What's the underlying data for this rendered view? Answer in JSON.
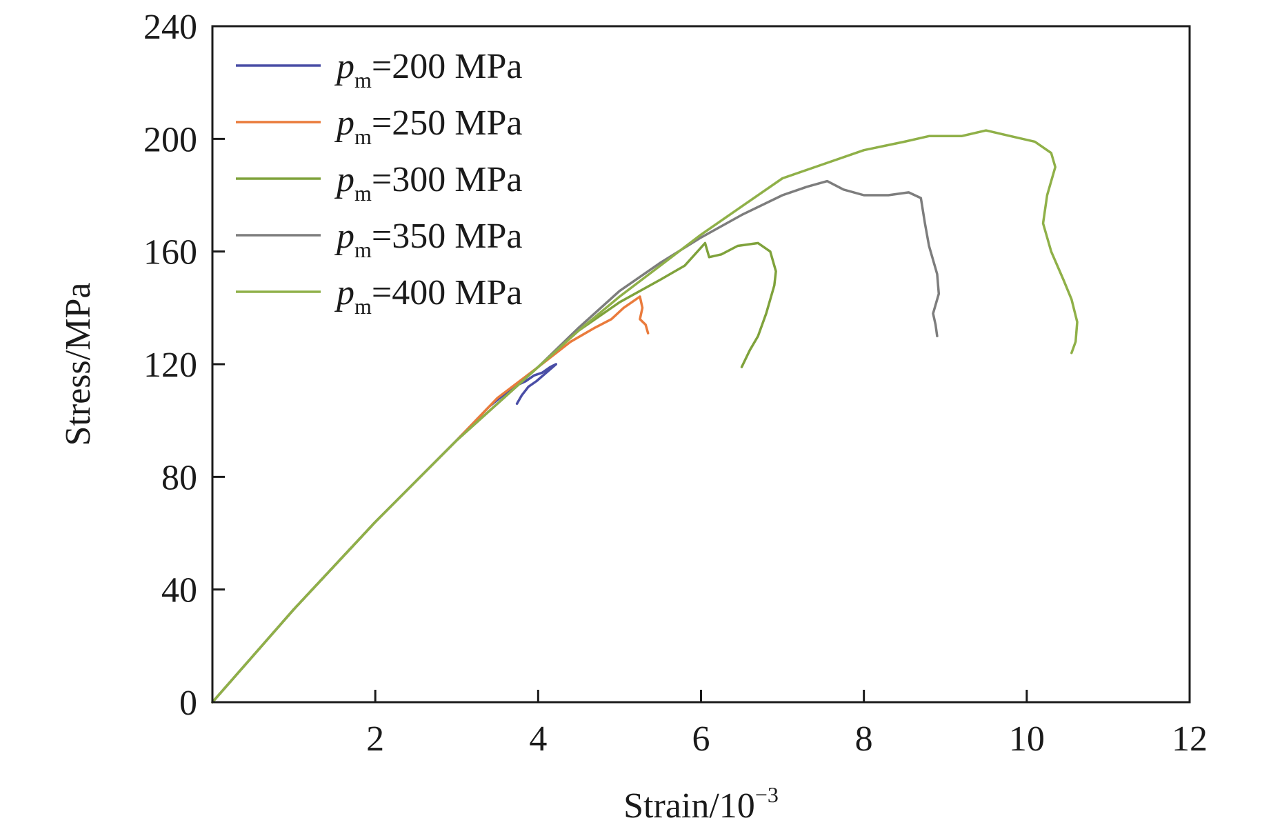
{
  "chart_data": {
    "type": "line",
    "title": "",
    "xlabel": "Strain/10",
    "xlabel_sup": "−3",
    "ylabel": "Stress/MPa",
    "xlim": [
      0,
      12
    ],
    "ylim": [
      0,
      240
    ],
    "xticks": [
      2,
      4,
      6,
      8,
      10,
      12
    ],
    "yticks": [
      0,
      40,
      80,
      120,
      160,
      200,
      240
    ],
    "grid": false,
    "legend_position": "top-left",
    "series": [
      {
        "name": "pm=200 MPa",
        "label_parts": {
          "p": "p",
          "sub": "m",
          "rest": "=200 MPa"
        },
        "color": "#4a4ea6",
        "points": [
          [
            0,
            0
          ],
          [
            1,
            33
          ],
          [
            2,
            64
          ],
          [
            3,
            93
          ],
          [
            3.4,
            105
          ],
          [
            3.7,
            112
          ],
          [
            3.85,
            114
          ],
          [
            3.95,
            116
          ],
          [
            4.05,
            117
          ],
          [
            4.15,
            119
          ],
          [
            4.22,
            120
          ],
          [
            4.1,
            117
          ],
          [
            3.98,
            114
          ],
          [
            3.88,
            112
          ],
          [
            3.8,
            109
          ],
          [
            3.74,
            106
          ]
        ]
      },
      {
        "name": "pm=250 MPa",
        "label_parts": {
          "p": "p",
          "sub": "m",
          "rest": "=250 MPa"
        },
        "color": "#ea7b3c",
        "points": [
          [
            0,
            0
          ],
          [
            1,
            33
          ],
          [
            2,
            64
          ],
          [
            3,
            93
          ],
          [
            3.5,
            108
          ],
          [
            4,
            119
          ],
          [
            4.4,
            128
          ],
          [
            4.7,
            133
          ],
          [
            4.9,
            136
          ],
          [
            5.05,
            140
          ],
          [
            5.15,
            142
          ],
          [
            5.25,
            144
          ],
          [
            5.28,
            140
          ],
          [
            5.25,
            136
          ],
          [
            5.32,
            134
          ],
          [
            5.35,
            131
          ]
        ]
      },
      {
        "name": "pm=300 MPa",
        "label_parts": {
          "p": "p",
          "sub": "m",
          "rest": "=300 MPa"
        },
        "color": "#7fa23b",
        "points": [
          [
            0,
            0
          ],
          [
            1,
            33
          ],
          [
            2,
            64
          ],
          [
            3,
            93
          ],
          [
            4,
            119
          ],
          [
            4.5,
            132
          ],
          [
            5,
            142
          ],
          [
            5.5,
            150
          ],
          [
            5.8,
            155
          ],
          [
            6.05,
            163
          ],
          [
            6.1,
            158
          ],
          [
            6.25,
            159
          ],
          [
            6.45,
            162
          ],
          [
            6.7,
            163
          ],
          [
            6.85,
            160
          ],
          [
            6.92,
            153
          ],
          [
            6.9,
            148
          ],
          [
            6.85,
            143
          ],
          [
            6.8,
            138
          ],
          [
            6.7,
            130
          ],
          [
            6.6,
            125
          ],
          [
            6.5,
            119
          ]
        ]
      },
      {
        "name": "pm=350 MPa",
        "label_parts": {
          "p": "p",
          "sub": "m",
          "rest": "=350 MPa"
        },
        "color": "#7d7d7d",
        "points": [
          [
            0,
            0
          ],
          [
            1,
            33
          ],
          [
            2,
            64
          ],
          [
            3,
            93
          ],
          [
            4,
            119
          ],
          [
            4.5,
            133
          ],
          [
            5,
            146
          ],
          [
            5.5,
            156
          ],
          [
            6,
            165
          ],
          [
            6.5,
            173
          ],
          [
            7,
            180
          ],
          [
            7.3,
            183
          ],
          [
            7.55,
            185
          ],
          [
            7.75,
            182
          ],
          [
            8,
            180
          ],
          [
            8.3,
            180
          ],
          [
            8.55,
            181
          ],
          [
            8.7,
            179
          ],
          [
            8.75,
            170
          ],
          [
            8.8,
            162
          ],
          [
            8.9,
            152
          ],
          [
            8.92,
            145
          ],
          [
            8.85,
            138
          ],
          [
            8.88,
            134
          ],
          [
            8.9,
            130
          ]
        ]
      },
      {
        "name": "pm=400 MPa",
        "label_parts": {
          "p": "p",
          "sub": "m",
          "rest": "=400 MPa"
        },
        "color": "#8fb048",
        "points": [
          [
            0,
            0
          ],
          [
            1,
            33
          ],
          [
            2,
            64
          ],
          [
            3,
            93
          ],
          [
            4,
            119
          ],
          [
            4.5,
            132
          ],
          [
            5,
            144
          ],
          [
            5.5,
            155
          ],
          [
            6,
            166
          ],
          [
            6.5,
            176
          ],
          [
            7,
            186
          ],
          [
            7.5,
            191
          ],
          [
            8,
            196
          ],
          [
            8.5,
            199
          ],
          [
            8.8,
            201
          ],
          [
            9.2,
            201
          ],
          [
            9.5,
            203
          ],
          [
            9.8,
            201
          ],
          [
            10.1,
            199
          ],
          [
            10.3,
            195
          ],
          [
            10.35,
            190
          ],
          [
            10.25,
            180
          ],
          [
            10.2,
            170
          ],
          [
            10.3,
            160
          ],
          [
            10.45,
            150
          ],
          [
            10.55,
            143
          ],
          [
            10.62,
            135
          ],
          [
            10.6,
            128
          ],
          [
            10.55,
            124
          ]
        ]
      }
    ]
  }
}
